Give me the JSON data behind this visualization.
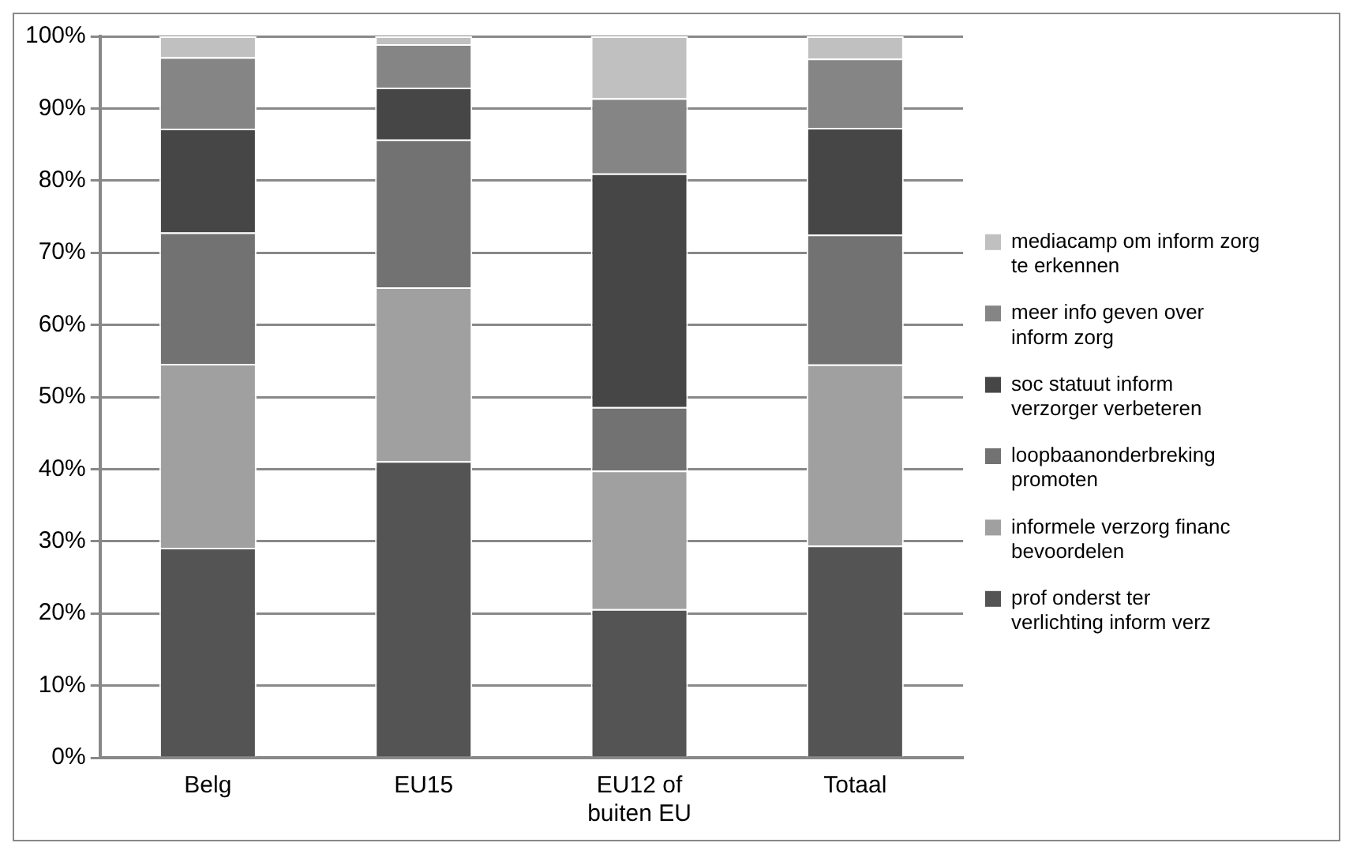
{
  "chart_data": {
    "type": "bar",
    "stacked": true,
    "categories": [
      "Belg",
      "EU15",
      "EU12 of buiten EU",
      "Totaal"
    ],
    "series": [
      {
        "name": "prof onderst ter verlichting inform verz",
        "color": "#545454",
        "values": [
          29.1,
          41.1,
          20.6,
          29.4
        ]
      },
      {
        "name": "informele verzorg financ bevoordelen",
        "color": "#a0a0a0",
        "values": [
          25.5,
          24.1,
          19.2,
          25.1
        ]
      },
      {
        "name": "loopbaanonderbreking promoten",
        "color": "#727272",
        "values": [
          18.2,
          20.5,
          8.8,
          18.0
        ]
      },
      {
        "name": "soc statuut inform verzorger verbeteren",
        "color": "#464646",
        "values": [
          14.4,
          7.2,
          32.4,
          14.8
        ]
      },
      {
        "name": "meer info geven over inform zorg",
        "color": "#858585",
        "values": [
          9.9,
          6.0,
          10.4,
          9.6
        ]
      },
      {
        "name": "mediacamp om inform zorg te erkennen",
        "color": "#c0c0c0",
        "values": [
          2.9,
          1.1,
          8.6,
          3.1
        ]
      }
    ],
    "ylim": [
      0,
      100
    ],
    "yticks": [
      {
        "value": 0,
        "label": "0%"
      },
      {
        "value": 10,
        "label": "10%"
      },
      {
        "value": 20,
        "label": "20%"
      },
      {
        "value": 30,
        "label": "30%"
      },
      {
        "value": 40,
        "label": "40%"
      },
      {
        "value": 50,
        "label": "50%"
      },
      {
        "value": 60,
        "label": "60%"
      },
      {
        "value": 70,
        "label": "70%"
      },
      {
        "value": 80,
        "label": "80%"
      },
      {
        "value": 90,
        "label": "90%"
      },
      {
        "value": 100,
        "label": "100%"
      }
    ],
    "grid": "y",
    "legend": "right"
  }
}
